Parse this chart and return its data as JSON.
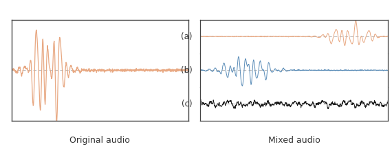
{
  "left_panel_label": "Original audio",
  "right_panel_label": "Mixed audio",
  "waveform_color_salmon": "#E8A882",
  "waveform_color_blue": "#5B8DB8",
  "waveform_color_black": "#1A1A1A",
  "dotted_line_color": "#BBBBBB",
  "box_edge_color": "#444444",
  "label_a": "(a)",
  "label_b": "(b)",
  "label_c": "(c)",
  "background_color": "#FFFFFF",
  "font_size_caption": 9,
  "font_size_label": 8.5
}
